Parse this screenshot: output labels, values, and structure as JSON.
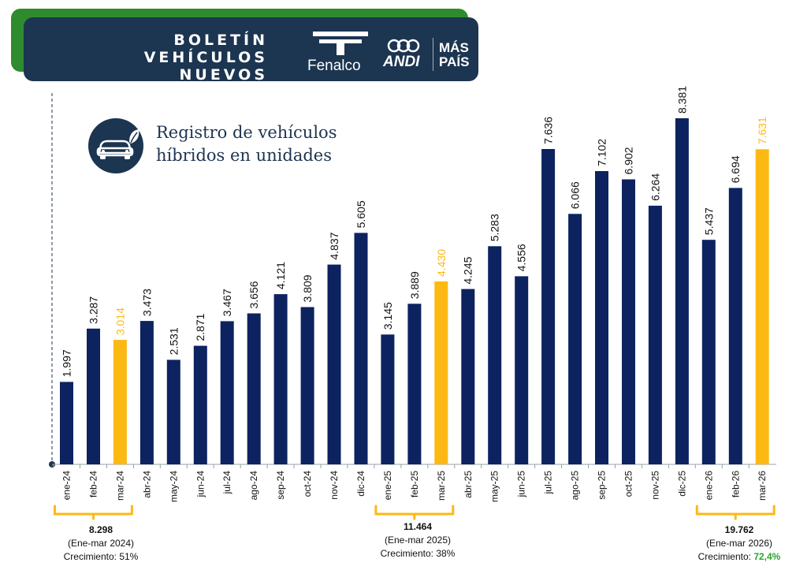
{
  "header": {
    "title_line1": "BOLETÍN",
    "title_line2": "VEHÍCULOS NUEVOS",
    "logo_fenalco": "Fenalco",
    "logo_andi": "ANDI",
    "logo_mas": "MÁS",
    "logo_pais": "PAÍS"
  },
  "chart_title_line1": "Registro de vehículos",
  "chart_title_line2": "híbridos  en unidades",
  "colors": {
    "navy": "#0d2360",
    "highlight": "#fdb913",
    "header": "#1c3550",
    "green": "#2e8b2e"
  },
  "chart_data": {
    "type": "bar",
    "categories": [
      "ene-24",
      "feb-24",
      "mar-24",
      "abr-24",
      "may-24",
      "jun-24",
      "jul-24",
      "ago-24",
      "sep-24",
      "oct-24",
      "nov-24",
      "dic-24",
      "ene-25",
      "feb-25",
      "mar-25",
      "abr-25",
      "may-25",
      "jun-25",
      "jul-25",
      "ago-25",
      "sep-25",
      "oct-25",
      "nov-25",
      "dic-25",
      "ene-26",
      "feb-26",
      "mar-26"
    ],
    "values": [
      1997,
      3287,
      3014,
      3473,
      2531,
      2871,
      3467,
      3656,
      4121,
      3809,
      4837,
      5605,
      3145,
      3889,
      4430,
      4245,
      5283,
      4556,
      7636,
      6066,
      7102,
      6902,
      6264,
      8381,
      5437,
      6694,
      7631
    ],
    "value_labels": [
      "1.997",
      "3.287",
      "3.014",
      "3.473",
      "2.531",
      "2.871",
      "3.467",
      "3.656",
      "4.121",
      "3.809",
      "4.837",
      "5.605",
      "3.145",
      "3.889",
      "4.430",
      "4.245",
      "5.283",
      "4.556",
      "7.636",
      "6.066",
      "7.102",
      "6.902",
      "6.264",
      "8.381",
      "5.437",
      "6.694",
      "7.631"
    ],
    "highlighted": [
      "mar-24",
      "mar-25",
      "mar-26"
    ],
    "ylim": [
      0,
      8381
    ],
    "grid": false
  },
  "summaries": [
    {
      "total": "8.298",
      "period": "(Ene-mar 2024)",
      "growth_label": "Crecimiento:",
      "growth_value": "51%"
    },
    {
      "total": "11.464",
      "period": "(Ene-mar 2025)",
      "growth_label": "Crecimiento:",
      "growth_value": "38%"
    },
    {
      "total": "19.762",
      "period": "(Ene-mar 2026)",
      "growth_label": "Crecimiento:",
      "growth_value": "72,4%"
    }
  ]
}
